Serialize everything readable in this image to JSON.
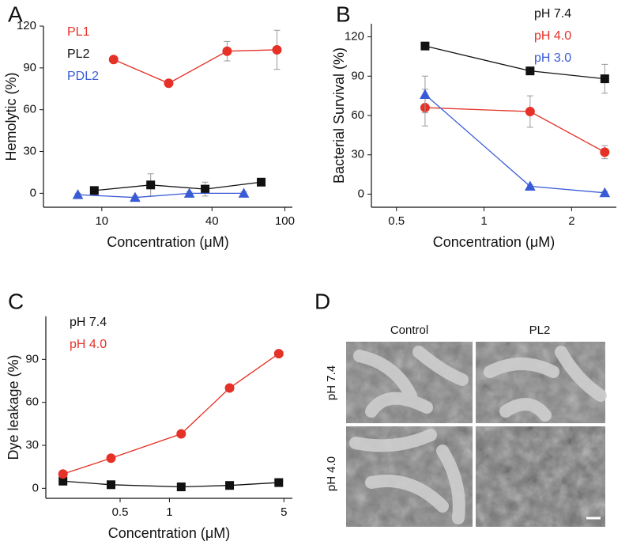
{
  "chart_data": [
    {
      "type": "line",
      "label": "A",
      "xlabel": "Concentration (μM)",
      "ylabel": "Hemolytic (%)",
      "xscale": "log",
      "xlim": [
        4.8,
        110
      ],
      "xticks": [
        10,
        40,
        100
      ],
      "ylim": [
        -10,
        120
      ],
      "yticks": [
        0,
        30,
        60,
        90,
        120
      ],
      "legend": "upper left",
      "series": [
        {
          "name": "PL1",
          "color": "#e53127",
          "marker": "circle",
          "x": [
            11.6,
            23.2,
            48.4,
            90.6
          ],
          "values": [
            96,
            79,
            102,
            103
          ],
          "errors": [
            2,
            2,
            7,
            14
          ]
        },
        {
          "name": "PL2",
          "color": "#111111",
          "marker": "square",
          "x": [
            9.1,
            18.5,
            36.7,
            74.3
          ],
          "values": [
            2,
            6,
            3,
            8
          ],
          "errors": [
            1,
            8,
            5,
            1
          ]
        },
        {
          "name": "PDL2",
          "color": "#3a5bd6",
          "marker": "triangle",
          "x": [
            7.4,
            15.2,
            30.1,
            59.7
          ],
          "values": [
            -1,
            -3,
            0,
            0
          ],
          "errors": [
            1,
            1,
            1,
            1
          ]
        }
      ]
    },
    {
      "type": "line",
      "label": "B",
      "xlabel": "Concentration (μM)",
      "ylabel": "Bacterial Survival (%)",
      "xscale": "log",
      "xlim": [
        0.41,
        2.85
      ],
      "xticks": [
        0.5,
        1,
        2
      ],
      "ylim": [
        -10,
        130
      ],
      "yticks": [
        0,
        30,
        60,
        90,
        120
      ],
      "legend": "upper right",
      "series": [
        {
          "name": "pH 7.4",
          "color": "#111111",
          "marker": "square",
          "x": [
            0.627,
            1.44,
            2.6
          ],
          "values": [
            113,
            94,
            88
          ],
          "errors": [
            2,
            2,
            11
          ]
        },
        {
          "name": "pH 4.0",
          "color": "#e53127",
          "marker": "circle",
          "x": [
            0.627,
            1.44,
            2.6
          ],
          "values": [
            66,
            63,
            32
          ],
          "errors": [
            14,
            12,
            5
          ]
        },
        {
          "name": "pH 3.0",
          "color": "#3a5bd6",
          "marker": "triangle",
          "x": [
            0.627,
            1.44,
            2.6
          ],
          "values": [
            76,
            6,
            1
          ],
          "errors": [
            14,
            1,
            1
          ]
        }
      ]
    },
    {
      "type": "line",
      "label": "C",
      "xlabel": "Concentration (μM)",
      "ylabel": "Dye leakage (%)",
      "xscale": "log",
      "xlim": [
        0.176,
        5.63
      ],
      "xticks": [
        0.5,
        1,
        5
      ],
      "ylim": [
        -7,
        120
      ],
      "yticks": [
        0,
        30,
        60,
        90
      ],
      "legend": "upper left",
      "series": [
        {
          "name": "pH 7.4",
          "color": "#111111",
          "marker": "square",
          "x": [
            0.224,
            0.44,
            1.18,
            2.33,
            4.65
          ],
          "values": [
            5,
            2.5,
            1,
            2,
            4
          ]
        },
        {
          "name": "pH 4.0",
          "color": "#e53127",
          "marker": "circle",
          "x": [
            0.224,
            0.44,
            1.18,
            2.33,
            4.65
          ],
          "values": [
            10,
            21,
            38,
            70,
            94
          ]
        }
      ]
    }
  ],
  "image_panel": {
    "label": "D",
    "columns": [
      "Control",
      "PL2"
    ],
    "rows": [
      "pH 7.4",
      "pH 4.0"
    ]
  }
}
